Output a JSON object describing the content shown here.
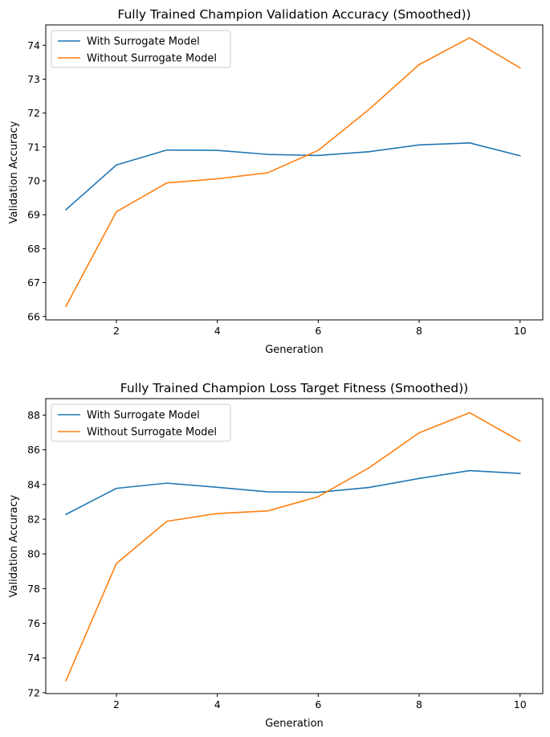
{
  "chart_data": [
    {
      "type": "line",
      "title": "Fully Trained Champion Validation Accuracy (Smoothed))",
      "xlabel": "Generation",
      "ylabel": "Validation Accuracy",
      "xlim": [
        0.6,
        10.45
      ],
      "ylim": [
        65.9,
        74.6
      ],
      "xticks": [
        2,
        4,
        6,
        8,
        10
      ],
      "yticks": [
        66,
        67,
        68,
        69,
        70,
        71,
        72,
        73,
        74
      ],
      "grid": false,
      "legend": "upper left",
      "x": [
        1,
        2,
        3,
        4,
        5,
        6,
        7,
        8,
        9,
        10
      ],
      "series": [
        {
          "name": "With Surrogate Model",
          "color": "#1f77b4",
          "values": [
            69.15,
            70.47,
            70.91,
            70.9,
            70.78,
            70.75,
            70.86,
            71.06,
            71.12,
            70.74
          ]
        },
        {
          "name": "Without Surrogate Model",
          "color": "#ff7f0e",
          "values": [
            66.3,
            69.09,
            69.94,
            70.06,
            70.24,
            70.9,
            72.1,
            73.43,
            74.22,
            73.33
          ]
        }
      ]
    },
    {
      "type": "line",
      "title": "Fully Trained Champion Loss Target Fitness (Smoothed))",
      "xlabel": "Generation",
      "ylabel": "Validation Accuracy",
      "xlim": [
        0.6,
        10.45
      ],
      "ylim": [
        71.95,
        88.95
      ],
      "xticks": [
        2,
        4,
        6,
        8,
        10
      ],
      "yticks": [
        72,
        74,
        76,
        78,
        80,
        82,
        84,
        86,
        88
      ],
      "grid": false,
      "legend": "upper left",
      "x": [
        1,
        2,
        3,
        4,
        5,
        6,
        7,
        8,
        9,
        10
      ],
      "series": [
        {
          "name": "With Surrogate Model",
          "color": "#1f77b4",
          "values": [
            82.28,
            83.78,
            84.08,
            83.84,
            83.58,
            83.55,
            83.83,
            84.35,
            84.8,
            84.64
          ]
        },
        {
          "name": "Without Surrogate Model",
          "color": "#ff7f0e",
          "values": [
            72.7,
            79.45,
            81.88,
            82.33,
            82.48,
            83.3,
            84.95,
            86.98,
            88.14,
            86.5
          ]
        }
      ]
    }
  ]
}
